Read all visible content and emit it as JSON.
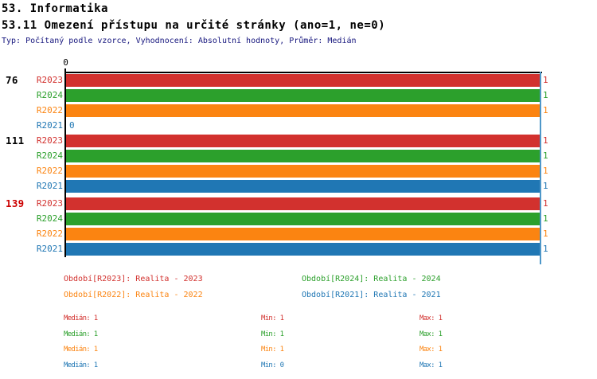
{
  "header": {
    "title1": "53. Informatika",
    "title2": "53.11 Omezení přístupu na určité stránky (ano=1, ne=0)",
    "meta": "Typ: Počítaný podle vzorce, Vyhodnocení: Absolutní hodnoty, Průměr: Medián",
    "meta_color": "#15157d"
  },
  "chart_data": {
    "type": "bar",
    "orientation": "horizontal",
    "value_axis": {
      "min_tick": "0",
      "min": 0,
      "max": 1,
      "grid": "single line at value 1"
    },
    "median_line": {
      "value": 1,
      "color": "#4e97c9"
    },
    "series_legend_order": [
      "R2023",
      "R2024",
      "R2022",
      "R2021"
    ],
    "groups": [
      {
        "label": "76",
        "label_color": "#000000",
        "bars": [
          {
            "label": "R2023",
            "color": "#d2312e",
            "value": 1,
            "value_label": "1"
          },
          {
            "label": "R2024",
            "color": "#2ca02c",
            "value": 1,
            "value_label": "1"
          },
          {
            "label": "R2022",
            "color": "#fb8411",
            "value": 1,
            "value_label": "1"
          },
          {
            "label": "R2021",
            "color": "#2077b4",
            "value": 0,
            "value_label": "0"
          }
        ]
      },
      {
        "label": "111",
        "label_color": "#000000",
        "bars": [
          {
            "label": "R2023",
            "color": "#d2312e",
            "value": 1,
            "value_label": "1"
          },
          {
            "label": "R2024",
            "color": "#2ca02c",
            "value": 1,
            "value_label": "1"
          },
          {
            "label": "R2022",
            "color": "#fb8411",
            "value": 1,
            "value_label": "1"
          },
          {
            "label": "R2021",
            "color": "#2077b4",
            "value": 1,
            "value_label": "1"
          }
        ]
      },
      {
        "label": "139",
        "label_color": "#cc0000",
        "bars": [
          {
            "label": "R2023",
            "color": "#d2312e",
            "value": 1,
            "value_label": "1"
          },
          {
            "label": "R2024",
            "color": "#2ca02c",
            "value": 1,
            "value_label": "1"
          },
          {
            "label": "R2022",
            "color": "#fb8411",
            "value": 1,
            "value_label": "1"
          },
          {
            "label": "R2021",
            "color": "#2077b4",
            "value": 1,
            "value_label": "1"
          }
        ]
      }
    ]
  },
  "legend": {
    "items": [
      {
        "label": "Období[R2023]: Realita - 2023",
        "color": "#d2312e"
      },
      {
        "label": "Období[R2024]: Realita - 2024",
        "color": "#2ca02c"
      },
      {
        "label": "Období[R2022]: Realita - 2022",
        "color": "#fb8411"
      },
      {
        "label": "Období[R2021]: Realita - 2021",
        "color": "#2077b4"
      }
    ]
  },
  "stats": {
    "rows": [
      {
        "color": "#d2312e",
        "median": "Medián: 1",
        "min": "Min: 1",
        "max": "Max: 1"
      },
      {
        "color": "#2ca02c",
        "median": "Medián: 1",
        "min": "Min: 1",
        "max": "Max: 1"
      },
      {
        "color": "#fb8411",
        "median": "Medián: 1",
        "min": "Min: 1",
        "max": "Max: 1"
      },
      {
        "color": "#2077b4",
        "median": "Medián: 1",
        "min": "Min: 0",
        "max": "Max: 1"
      }
    ]
  }
}
